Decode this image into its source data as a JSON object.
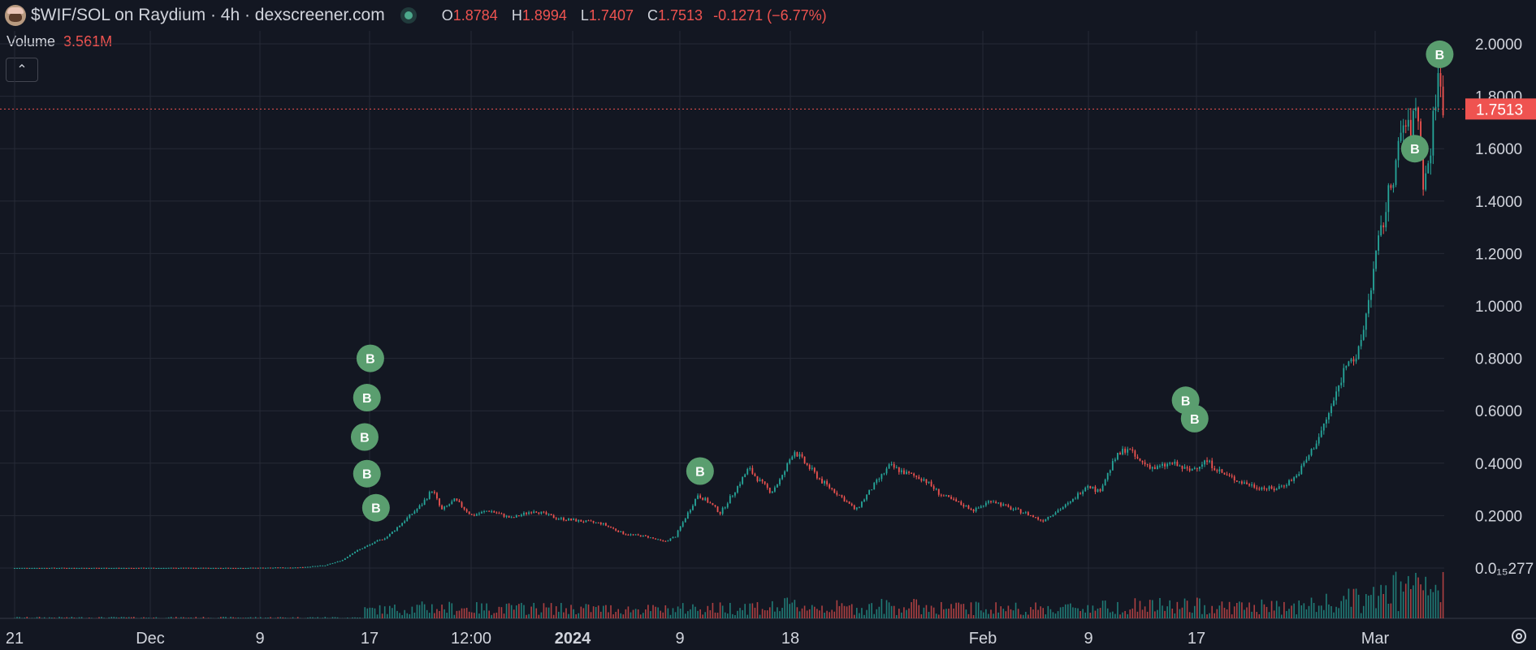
{
  "header": {
    "title": "$WIF/SOL on Raydium · 4h · dexscreener.com",
    "ohlc": {
      "o_label": "O",
      "o": "1.8784",
      "h_label": "H",
      "h": "1.8994",
      "l_label": "L",
      "l": "1.7407",
      "c_label": "C",
      "c": "1.7513",
      "change": "-0.1271 (−6.77%)"
    }
  },
  "volume": {
    "label": "Volume",
    "value": "3.561M"
  },
  "colors": {
    "background": "#131722",
    "up": "#26a69a",
    "down": "#ef5350",
    "grid": "#262a36",
    "marker": "#5a9e6f",
    "text": "#d1d4dc"
  },
  "icons": {
    "avatar": "dog-avatar-icon",
    "collapse": "chevron-up-icon",
    "settings": "gear-icon",
    "status": "status-dot-icon"
  },
  "chart_data": {
    "type": "candlestick",
    "xlabel": "",
    "ylabel": "",
    "ylim": [
      0.0,
      2.05
    ],
    "y_ticks": [
      "2.0000",
      "1.8000",
      "1.6000",
      "1.4000",
      "1.2000",
      "1.0000",
      "0.8000",
      "0.6000",
      "0.4000",
      "0.2000",
      "0.0₁₅277"
    ],
    "x_ticks": [
      "21",
      "Dec",
      "9",
      "17",
      "12:00",
      "2024",
      "9",
      "18",
      "Feb",
      "9",
      "17",
      "Mar"
    ],
    "last_price_label": "1.7513",
    "marker_label": "B",
    "series": [
      {
        "name": "",
        "points": [
          {
            "t": 0,
            "v": 0.0
          },
          {
            "t": 100,
            "v": 0.0
          },
          {
            "t": 200,
            "v": 0.0
          },
          {
            "t": 250,
            "v": 0.002
          },
          {
            "t": 275,
            "v": 0.01
          },
          {
            "t": 290,
            "v": 0.03
          },
          {
            "t": 300,
            "v": 0.06
          },
          {
            "t": 310,
            "v": 0.08
          },
          {
            "t": 330,
            "v": 0.12
          },
          {
            "t": 345,
            "v": 0.18
          },
          {
            "t": 360,
            "v": 0.24
          },
          {
            "t": 370,
            "v": 0.3
          },
          {
            "t": 378,
            "v": 0.22
          },
          {
            "t": 390,
            "v": 0.26
          },
          {
            "t": 405,
            "v": 0.2
          },
          {
            "t": 420,
            "v": 0.22
          },
          {
            "t": 440,
            "v": 0.19
          },
          {
            "t": 460,
            "v": 0.22
          },
          {
            "t": 480,
            "v": 0.19
          },
          {
            "t": 500,
            "v": 0.18
          },
          {
            "t": 520,
            "v": 0.17
          },
          {
            "t": 540,
            "v": 0.13
          },
          {
            "t": 560,
            "v": 0.12
          },
          {
            "t": 575,
            "v": 0.1
          },
          {
            "t": 585,
            "v": 0.12
          },
          {
            "t": 595,
            "v": 0.2
          },
          {
            "t": 605,
            "v": 0.28
          },
          {
            "t": 615,
            "v": 0.25
          },
          {
            "t": 625,
            "v": 0.21
          },
          {
            "t": 640,
            "v": 0.31
          },
          {
            "t": 650,
            "v": 0.38
          },
          {
            "t": 660,
            "v": 0.33
          },
          {
            "t": 670,
            "v": 0.29
          },
          {
            "t": 680,
            "v": 0.35
          },
          {
            "t": 690,
            "v": 0.45
          },
          {
            "t": 700,
            "v": 0.4
          },
          {
            "t": 715,
            "v": 0.33
          },
          {
            "t": 730,
            "v": 0.28
          },
          {
            "t": 745,
            "v": 0.22
          },
          {
            "t": 760,
            "v": 0.31
          },
          {
            "t": 775,
            "v": 0.39
          },
          {
            "t": 790,
            "v": 0.36
          },
          {
            "t": 805,
            "v": 0.34
          },
          {
            "t": 820,
            "v": 0.28
          },
          {
            "t": 835,
            "v": 0.25
          },
          {
            "t": 850,
            "v": 0.22
          },
          {
            "t": 865,
            "v": 0.26
          },
          {
            "t": 880,
            "v": 0.23
          },
          {
            "t": 895,
            "v": 0.21
          },
          {
            "t": 910,
            "v": 0.18
          },
          {
            "t": 920,
            "v": 0.21
          },
          {
            "t": 935,
            "v": 0.25
          },
          {
            "t": 950,
            "v": 0.32
          },
          {
            "t": 960,
            "v": 0.29
          },
          {
            "t": 975,
            "v": 0.42
          },
          {
            "t": 985,
            "v": 0.46
          },
          {
            "t": 995,
            "v": 0.41
          },
          {
            "t": 1010,
            "v": 0.38
          },
          {
            "t": 1025,
            "v": 0.4
          },
          {
            "t": 1040,
            "v": 0.37
          },
          {
            "t": 1055,
            "v": 0.41
          },
          {
            "t": 1070,
            "v": 0.36
          },
          {
            "t": 1085,
            "v": 0.33
          },
          {
            "t": 1100,
            "v": 0.31
          },
          {
            "t": 1115,
            "v": 0.3
          },
          {
            "t": 1125,
            "v": 0.32
          },
          {
            "t": 1135,
            "v": 0.35
          },
          {
            "t": 1145,
            "v": 0.42
          },
          {
            "t": 1155,
            "v": 0.5
          },
          {
            "t": 1163,
            "v": 0.58
          },
          {
            "t": 1170,
            "v": 0.66
          },
          {
            "t": 1176,
            "v": 0.74
          },
          {
            "t": 1182,
            "v": 0.82
          },
          {
            "t": 1188,
            "v": 0.78
          },
          {
            "t": 1194,
            "v": 0.9
          },
          {
            "t": 1200,
            "v": 1.05
          },
          {
            "t": 1206,
            "v": 1.2
          },
          {
            "t": 1212,
            "v": 1.32
          },
          {
            "t": 1218,
            "v": 1.45
          },
          {
            "t": 1224,
            "v": 1.56
          },
          {
            "t": 1230,
            "v": 1.7
          },
          {
            "t": 1236,
            "v": 1.65
          },
          {
            "t": 1242,
            "v": 1.78
          },
          {
            "t": 1248,
            "v": 1.45
          },
          {
            "t": 1254,
            "v": 1.6
          },
          {
            "t": 1260,
            "v": 1.88
          },
          {
            "t": 1266,
            "v": 1.7513
          }
        ]
      }
    ]
  }
}
